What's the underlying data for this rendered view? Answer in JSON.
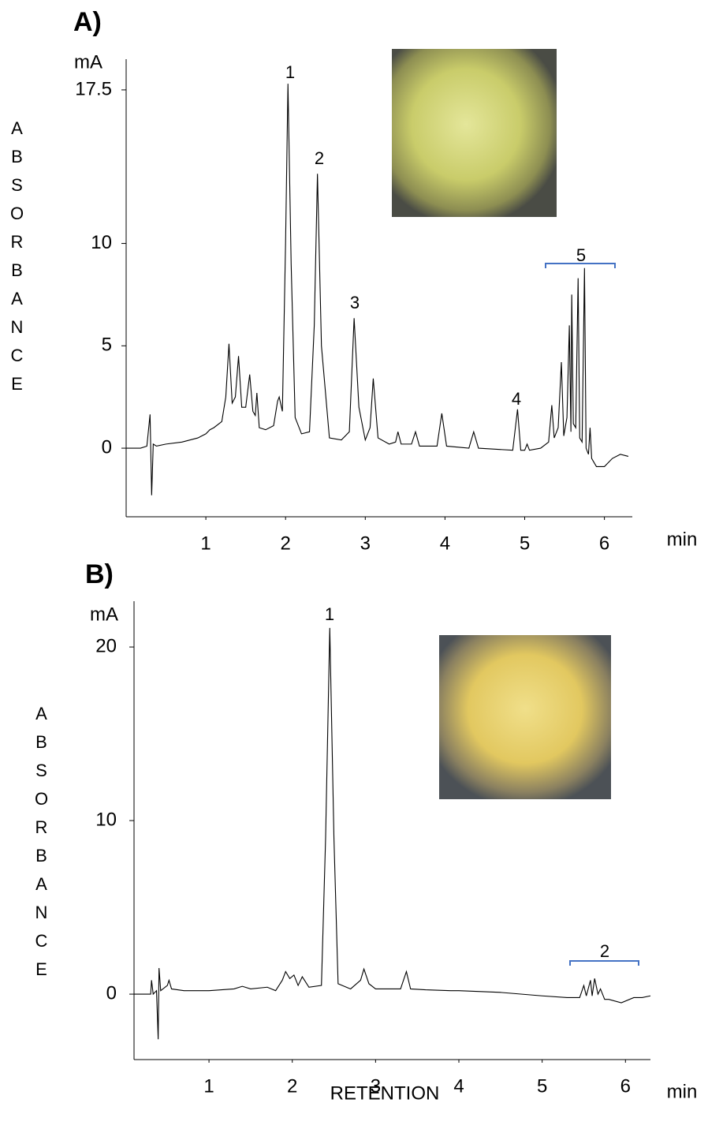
{
  "chart_data": [
    {
      "type": "line",
      "title": "A)",
      "y_unit": "mA",
      "x_unit": "min",
      "y_title": "ABSORBANCE",
      "color": "#000000",
      "x": [
        0,
        0.18,
        0.26,
        0.3,
        0.32,
        0.34,
        0.38,
        0.5,
        0.7,
        0.9,
        1.0,
        1.05,
        1.1,
        1.2,
        1.25,
        1.29,
        1.33,
        1.37,
        1.41,
        1.45,
        1.5,
        1.55,
        1.59,
        1.62,
        1.64,
        1.67,
        1.75,
        1.85,
        1.9,
        1.92,
        1.96,
        2.0,
        2.03,
        2.07,
        2.12,
        2.2,
        2.3,
        2.36,
        2.4,
        2.45,
        2.55,
        2.7,
        2.8,
        2.86,
        2.92,
        3.0,
        3.06,
        3.1,
        3.16,
        3.3,
        3.38,
        3.41,
        3.45,
        3.58,
        3.63,
        3.68,
        3.9,
        3.96,
        4.02,
        4.3,
        4.36,
        4.42,
        4.85,
        4.91,
        4.95,
        5.0,
        5.03,
        5.06,
        5.2,
        5.3,
        5.34,
        5.37,
        5.42,
        5.46,
        5.49,
        5.53,
        5.56,
        5.58,
        5.59,
        5.61,
        5.64,
        5.67,
        5.69,
        5.72,
        5.75,
        5.77,
        5.8,
        5.82,
        5.84,
        5.9,
        6.0,
        6.1,
        6.2,
        6.3
      ],
      "values": [
        0,
        0,
        0.1,
        1.65,
        -2.3,
        0.2,
        0.1,
        0.2,
        0.3,
        0.5,
        0.7,
        0.9,
        1.0,
        1.3,
        2.5,
        5.1,
        2.2,
        2.5,
        4.5,
        2.0,
        2.0,
        3.6,
        1.8,
        1.6,
        2.7,
        1.0,
        0.9,
        1.1,
        2.3,
        2.5,
        1.8,
        10,
        17.8,
        9,
        1.5,
        0.7,
        0.8,
        6,
        13.4,
        5,
        0.5,
        0.4,
        0.8,
        6.35,
        2.0,
        0.4,
        1.0,
        3.4,
        0.5,
        0.2,
        0.3,
        0.8,
        0.2,
        0.2,
        0.8,
        0.1,
        0.1,
        1.7,
        0.1,
        0.0,
        0.8,
        0.0,
        -0.1,
        1.9,
        -0.1,
        -0.1,
        0.2,
        -0.1,
        0.0,
        0.3,
        2.1,
        0.5,
        1.0,
        4.2,
        0.6,
        1.5,
        6.0,
        0.8,
        7.5,
        1.2,
        1.0,
        8.3,
        0.5,
        0.3,
        8.8,
        0.0,
        -0.3,
        1.0,
        -0.5,
        -0.9,
        -0.9,
        -0.5,
        -0.3,
        -0.4
      ],
      "xlim": [
        0,
        6.35
      ],
      "ylim": [
        -3.35,
        19.0
      ],
      "xticks": [
        1,
        2,
        3,
        4,
        5,
        6
      ],
      "yticks": [
        0,
        5,
        10,
        17.5
      ],
      "annotations": [
        "1",
        "2",
        "3",
        "4",
        "5"
      ]
    },
    {
      "type": "line",
      "title": "B)",
      "y_unit": "mA",
      "x_unit": "min",
      "y_title": "ABSORBANCE",
      "x_title": "RETENTION",
      "color": "#000000",
      "x": [
        0.1,
        0.3,
        0.31,
        0.33,
        0.37,
        0.39,
        0.4,
        0.42,
        0.5,
        0.52,
        0.55,
        0.7,
        1.0,
        1.3,
        1.4,
        1.5,
        1.7,
        1.8,
        1.88,
        1.92,
        1.97,
        2.02,
        2.07,
        2.12,
        2.2,
        2.35,
        2.4,
        2.45,
        2.5,
        2.55,
        2.7,
        2.82,
        2.86,
        2.92,
        3.0,
        3.3,
        3.37,
        3.42,
        3.6,
        3.9,
        4.0,
        4.5,
        5.0,
        5.3,
        5.45,
        5.5,
        5.53,
        5.58,
        5.6,
        5.63,
        5.67,
        5.7,
        5.75,
        5.8,
        5.95,
        6.1,
        6.2,
        6.3
      ],
      "values": [
        0,
        0,
        0.8,
        0.0,
        0.2,
        -2.6,
        1.5,
        0.2,
        0.5,
        0.8,
        0.3,
        0.2,
        0.2,
        0.3,
        0.45,
        0.3,
        0.4,
        0.2,
        0.8,
        1.3,
        0.9,
        1.1,
        0.5,
        1.0,
        0.4,
        0.5,
        9,
        21.1,
        9,
        0.6,
        0.3,
        0.8,
        1.45,
        0.6,
        0.3,
        0.3,
        1.3,
        0.3,
        0.25,
        0.2,
        0.2,
        0.1,
        -0.1,
        -0.2,
        -0.2,
        0.5,
        -0.1,
        0.8,
        -0.1,
        0.9,
        0.0,
        0.3,
        -0.3,
        -0.3,
        -0.5,
        -0.2,
        -0.2,
        -0.1
      ],
      "xlim": [
        0.1,
        6.3
      ],
      "ylim": [
        -3.77,
        22.64
      ],
      "xticks": [
        1,
        2,
        3,
        4,
        5,
        6
      ],
      "yticks": [
        0,
        10,
        20
      ],
      "annotations": [
        "1",
        "2"
      ]
    }
  ]
}
